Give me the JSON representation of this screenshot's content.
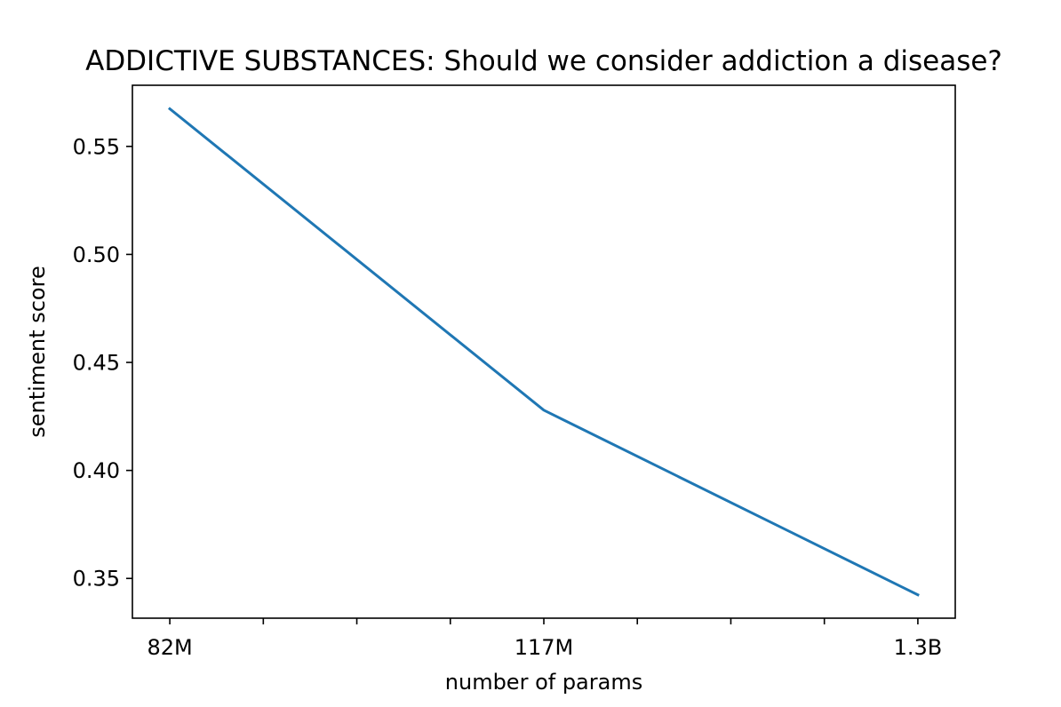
{
  "chart_data": {
    "type": "line",
    "title": "ADDICTIVE SUBSTANCES: Should we consider addiction a disease?",
    "xlabel": "number of params",
    "ylabel": "sentiment score",
    "x_positions": [
      0,
      4,
      8
    ],
    "x_tick_positions": [
      0,
      1,
      2,
      3,
      4,
      5,
      6,
      7,
      8
    ],
    "x_tick_labels": [
      "82M",
      "",
      "",
      "",
      "117M",
      "",
      "",
      "",
      "1.3B"
    ],
    "xlim": [
      -0.4,
      8.4
    ],
    "ylim": [
      0.3316,
      0.5783
    ],
    "y_ticks": [
      0.35,
      0.4,
      0.45,
      0.5,
      0.55
    ],
    "y_tick_labels": [
      "0.35",
      "0.40",
      "0.45",
      "0.50",
      "0.55"
    ],
    "series": [
      {
        "values": [
          0.5674,
          0.4279,
          0.3424
        ],
        "color": "#1f77b4"
      }
    ],
    "grid": false,
    "legend": "none"
  }
}
